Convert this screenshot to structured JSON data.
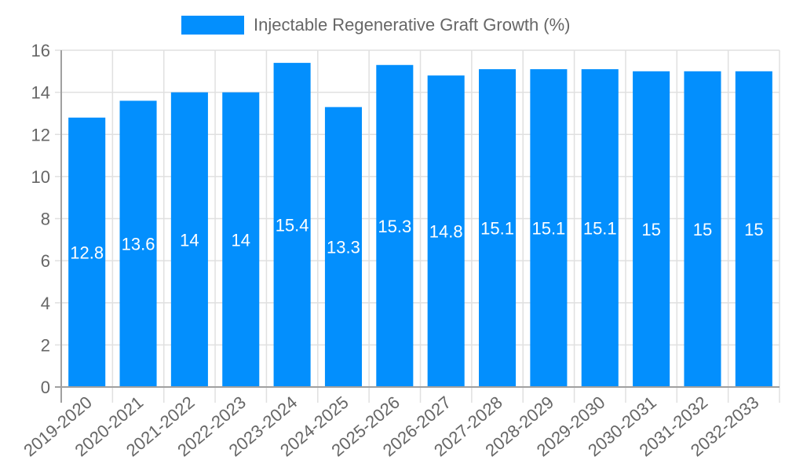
{
  "legend": {
    "label": "Injectable Regenerative Graft Growth (%)",
    "color": "#038ffd"
  },
  "colors": {
    "bar": "#038ffd",
    "grid": "#e0e0e0",
    "axis": "#a0a0a0",
    "tick_text": "#666666",
    "data_label": "#ffffff"
  },
  "chart_data": {
    "type": "bar",
    "title": "",
    "xlabel": "",
    "ylabel": "",
    "categories": [
      "2019-2020",
      "2020-2021",
      "2021-2022",
      "2022-2023",
      "2023-2024",
      "2024-2025",
      "2025-2026",
      "2026-2027",
      "2027-2028",
      "2028-2029",
      "2029-2030",
      "2030-2031",
      "2031-2032",
      "2032-2033"
    ],
    "series": [
      {
        "name": "Injectable Regenerative Graft Growth (%)",
        "values": [
          12.8,
          13.6,
          14,
          14,
          15.4,
          13.3,
          15.3,
          14.8,
          15.1,
          15.1,
          15.1,
          15,
          15,
          15
        ]
      }
    ],
    "ylim": [
      0,
      16
    ],
    "yticks": [
      0,
      2,
      4,
      6,
      8,
      10,
      12,
      14,
      16
    ],
    "grid": true,
    "legend_position": "top",
    "data_labels": true
  }
}
